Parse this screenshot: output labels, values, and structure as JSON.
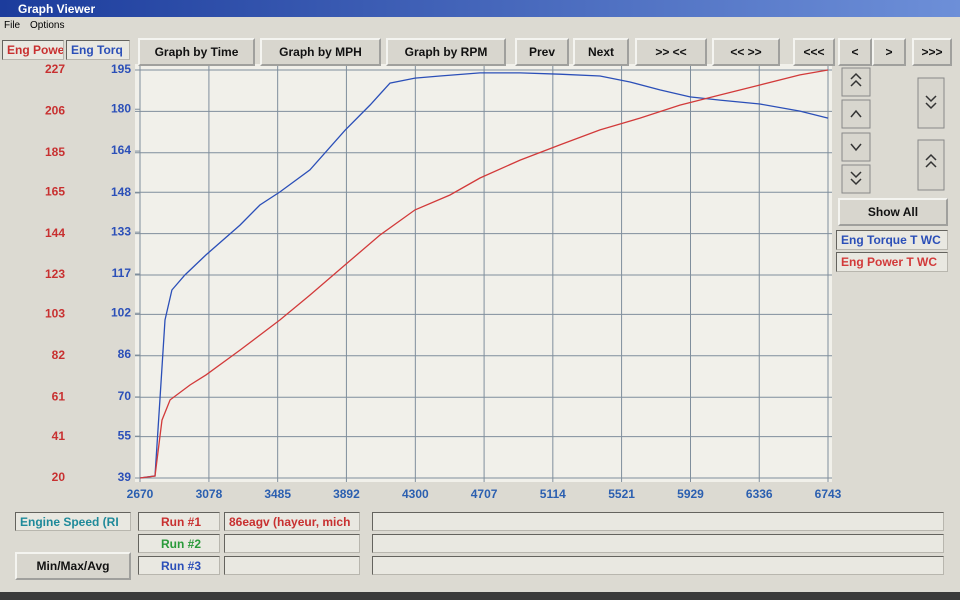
{
  "window": {
    "title": "Graph Viewer",
    "menu": [
      "File",
      "Options"
    ]
  },
  "toolbar": {
    "buttons": [
      "Graph by Time",
      "Graph by MPH",
      "Graph by RPM",
      "Prev",
      "Next",
      ">> <<",
      "<< >>",
      "<<<",
      "<",
      ">",
      ">>>"
    ]
  },
  "side_panel": {
    "show_all": "Show All"
  },
  "runs": [
    {
      "label": "Run #1",
      "name": "86eagv (hayeur, mich"
    },
    {
      "label": "Run #2"
    },
    {
      "label": "Run #3"
    }
  ],
  "summary_button": "Min/Max/Avg",
  "chart_data": {
    "type": "line",
    "x_label": "Engine Speed (RI",
    "y_label": "Eng Powe",
    "y2_label": "Eng Torq",
    "xlim": [
      2670,
      6743
    ],
    "xticks": [
      2670,
      3078,
      3485,
      3892,
      4300,
      4707,
      5114,
      5521,
      5929,
      6336,
      6743
    ],
    "ylim": [
      20,
      227
    ],
    "yticks": [
      20,
      41,
      61,
      82,
      103,
      123,
      144,
      165,
      185,
      206,
      227
    ],
    "y2lim": [
      39,
      195
    ],
    "y2ticks": [
      39,
      55,
      70,
      86,
      102,
      117,
      133,
      148,
      164,
      180,
      195
    ],
    "grid": true,
    "series": [
      {
        "name": "Eng Torque T WC",
        "color": "#2b4fb8",
        "axis": "y2",
        "x": [
          2670,
          2759,
          2788,
          2818,
          2859,
          2936,
          3061,
          3262,
          3380,
          3499,
          3676,
          3884,
          4032,
          4150,
          4298,
          4446,
          4683,
          4920,
          5156,
          5393,
          5571,
          5748,
          5926,
          6103,
          6340,
          6577,
          6743
        ],
        "values": [
          39,
          39.8,
          68.8,
          99.4,
          110.9,
          116.6,
          124.3,
          135.7,
          143.4,
          148.4,
          156.8,
          172,
          181.6,
          190,
          191.9,
          192.7,
          193.9,
          193.9,
          193.4,
          192.7,
          190.4,
          187.4,
          184.7,
          183.5,
          182,
          179.3,
          176.6
        ]
      },
      {
        "name": "Eng Power T WC",
        "color": "#d23a3a",
        "x": [
          2670,
          2759,
          2800,
          2848,
          2966,
          3061,
          3262,
          3499,
          3676,
          3884,
          4091,
          4298,
          4505,
          4683,
          4920,
          5156,
          5393,
          5630,
          5866,
          6103,
          6340,
          6577,
          6743
        ],
        "values": [
          20,
          21,
          49.4,
          59.6,
          67.2,
          72.3,
          84.9,
          100.2,
          112.8,
          128.1,
          143.3,
          156,
          163.6,
          172.2,
          181.3,
          189,
          196.6,
          202.6,
          209.2,
          214.3,
          219.4,
          224.5,
          227
        ]
      }
    ]
  }
}
